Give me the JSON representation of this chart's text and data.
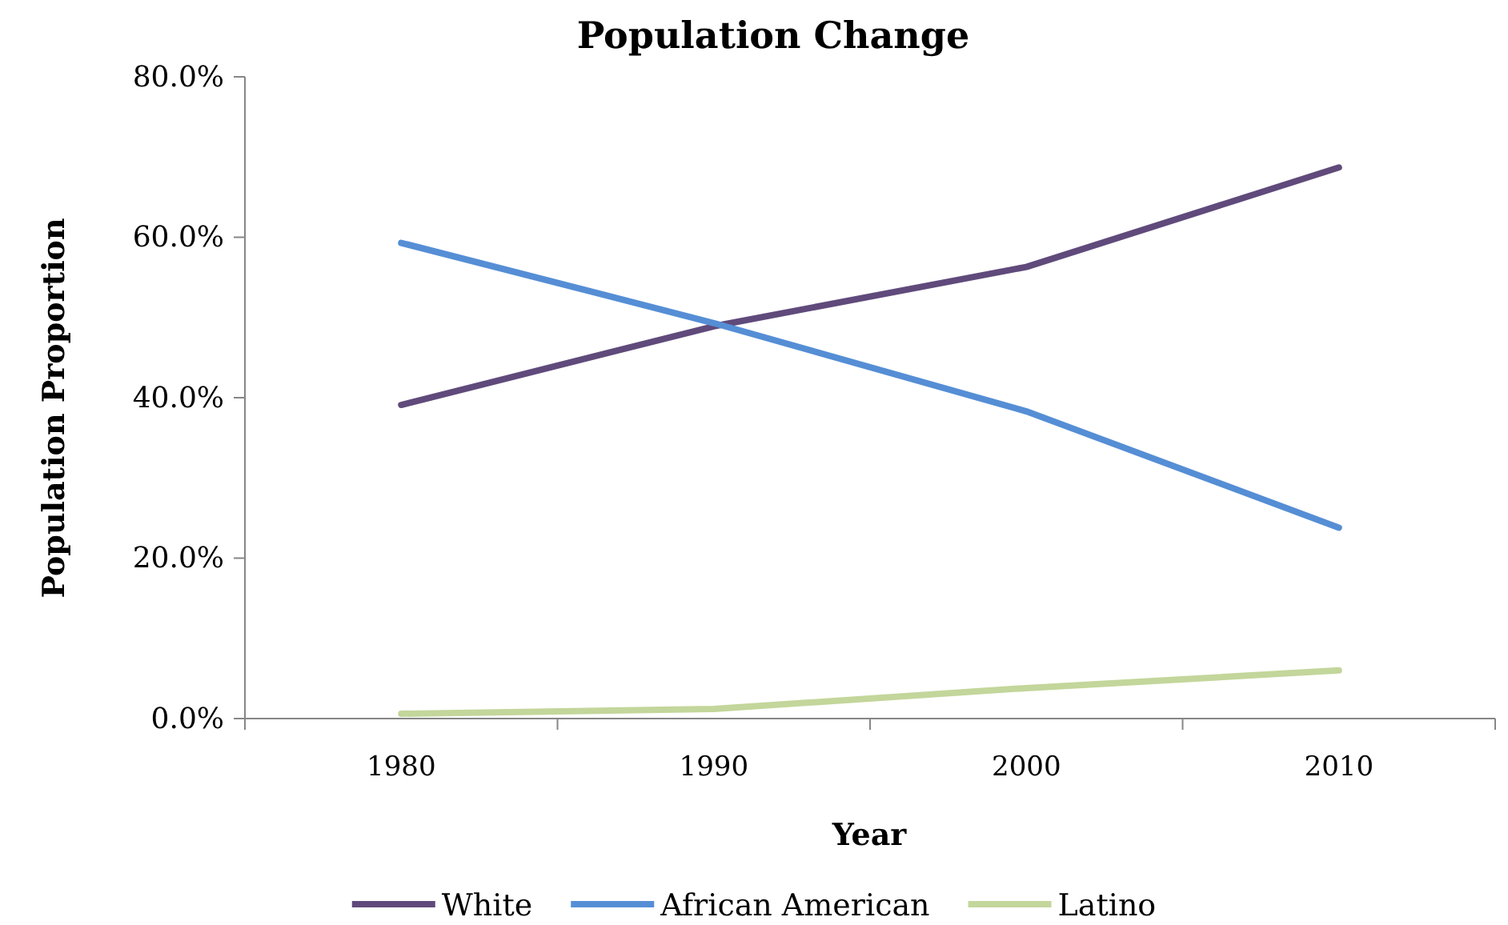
{
  "chart_data": {
    "type": "line",
    "title": "Population Change",
    "xlabel": "Year",
    "ylabel": "Population Proportion",
    "categories": [
      "1980",
      "1990",
      "2000",
      "2010"
    ],
    "series": [
      {
        "name": "White",
        "color": "#604a7b",
        "values": [
          39.1,
          48.9,
          56.3,
          68.7
        ]
      },
      {
        "name": "African American",
        "color": "#558ed5",
        "values": [
          59.3,
          49.3,
          38.3,
          23.8
        ]
      },
      {
        "name": "Latino",
        "color": "#c3d69b",
        "values": [
          0.6,
          1.2,
          3.8,
          6.0
        ]
      }
    ],
    "ylim": [
      0,
      80
    ],
    "yticks": [
      {
        "value": 0,
        "label": "0.0%"
      },
      {
        "value": 20,
        "label": "20.0%"
      },
      {
        "value": 40,
        "label": "40.0%"
      },
      {
        "value": 60,
        "label": "60.0%"
      },
      {
        "value": 80,
        "label": "80.0%"
      }
    ],
    "grid": false,
    "legend": "bottom",
    "marker": "none",
    "line_style": "solid"
  }
}
